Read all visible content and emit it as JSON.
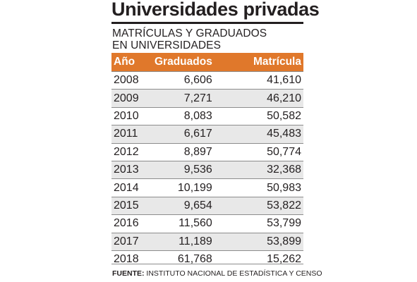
{
  "title": "Universidades privadas",
  "subtitle_line1": "MATRÍCULAS Y GRADUADOS",
  "subtitle_line2": "EN UNIVERSIDADES",
  "colors": {
    "header_bg": "#e0782b",
    "alt_row_bg": "#e8e8e8",
    "text": "#231f20"
  },
  "table": {
    "headers": [
      "Año",
      "Graduados",
      "Matrícula"
    ],
    "rows": [
      [
        "2008",
        "6,606",
        "41,610"
      ],
      [
        "2009",
        "7,271",
        "46,210"
      ],
      [
        "2010",
        "8,083",
        "50,582"
      ],
      [
        "2011",
        "6,617",
        "45,483"
      ],
      [
        "2012",
        "8,897",
        "50,774"
      ],
      [
        "2013",
        "9,536",
        "32,368"
      ],
      [
        "2014",
        "10,199",
        "50,983"
      ],
      [
        "2015",
        "9,654",
        "53,822"
      ],
      [
        "2016",
        "11,560",
        "53,799"
      ],
      [
        "2017",
        "11,189",
        "53,899"
      ],
      [
        "2018",
        "61,768",
        "15,262"
      ]
    ]
  },
  "source": {
    "label": "FUENTE:",
    "text": " INSTITUTO NACIONAL DE ESTADÍSTICA Y CENSO"
  }
}
